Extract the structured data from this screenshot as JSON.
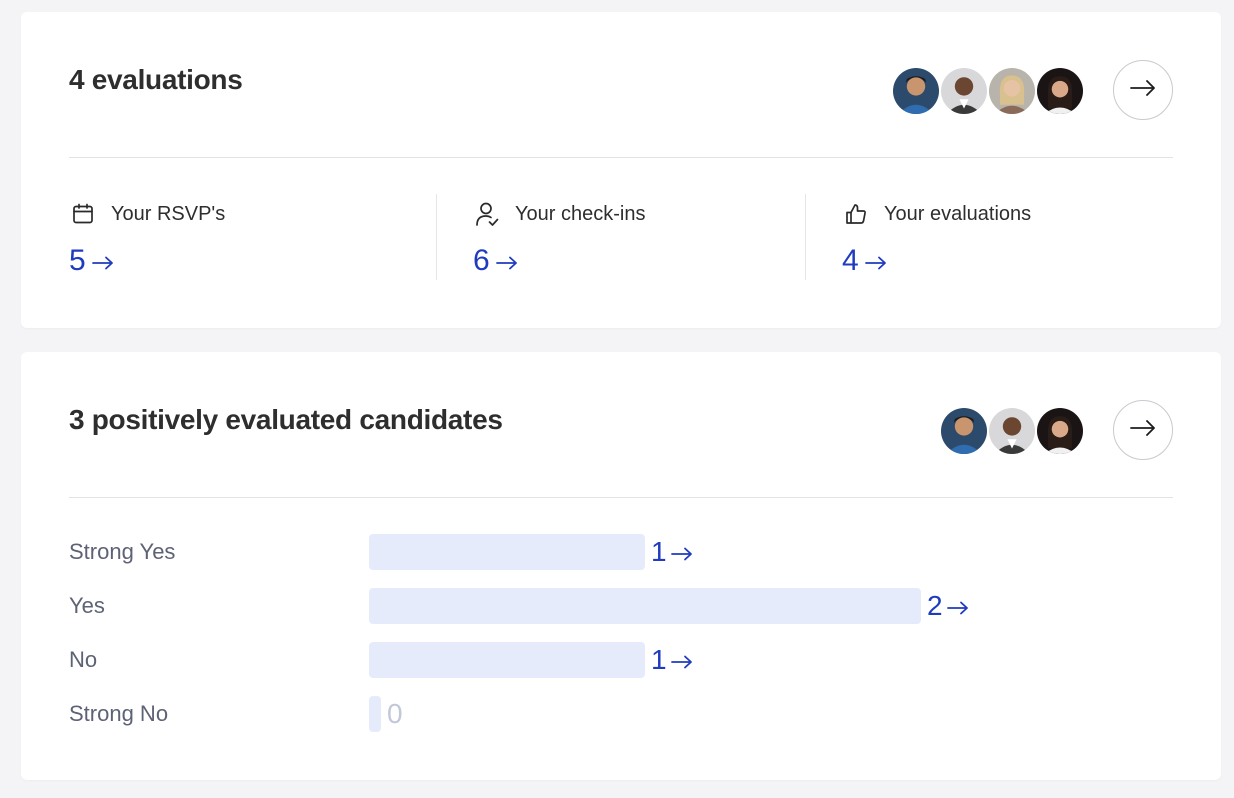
{
  "evaluations_card": {
    "title": "4 evaluations",
    "avatars": [
      "avatar-1",
      "avatar-2",
      "avatar-3",
      "avatar-4"
    ],
    "stats": [
      {
        "icon": "calendar-icon",
        "label": "Your RSVP's",
        "value": "5"
      },
      {
        "icon": "user-check-icon",
        "label": "Your check-ins",
        "value": "6"
      },
      {
        "icon": "thumbs-up-icon",
        "label": "Your evaluations",
        "value": "4"
      }
    ]
  },
  "candidates_card": {
    "title": "3 positively evaluated candidates",
    "avatars": [
      "avatar-1",
      "avatar-2",
      "avatar-4"
    ],
    "distribution": {
      "max": 2,
      "rows": [
        {
          "label": "Strong Yes",
          "count": 1
        },
        {
          "label": "Yes",
          "count": 2
        },
        {
          "label": "No",
          "count": 1
        },
        {
          "label": "Strong No",
          "count": 0
        }
      ]
    }
  },
  "colors": {
    "accent": "#1f3bbf",
    "bar": "#e6ebfc",
    "muted": "#c3c8d8"
  }
}
